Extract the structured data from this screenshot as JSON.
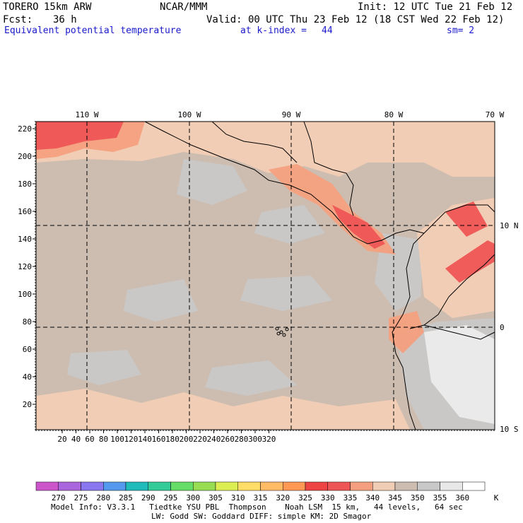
{
  "header": {
    "model_name": "TORERO",
    "resolution": "15km ARW",
    "org": "NCAR/MMM",
    "init_label": "Init: 12 UTC Tue 21 Feb 12",
    "forecast_label": "Fcst:",
    "forecast_hours": "36 h",
    "valid_label": "Valid: 00 UTC Thu 23 Feb 12 (18 CST Wed 22 Feb 12)",
    "field_title": "Equivalent potential temperature",
    "level_label": "at k-index =",
    "level_value": "44",
    "smoothing": "sm= 2"
  },
  "chart_data": {
    "type": "heatmap",
    "title": "Equivalent potential temperature",
    "units": "K",
    "x_grid_ticks": [
      "20",
      "40",
      "60",
      "80",
      "100",
      "120",
      "140",
      "160",
      "180",
      "200",
      "220",
      "240",
      "260",
      "280",
      "300",
      "320"
    ],
    "y_grid_ticks": [
      "20",
      "40",
      "60",
      "80",
      "100",
      "120",
      "140",
      "160",
      "180",
      "200",
      "220"
    ],
    "longitude_labels": [
      "110 W",
      "100 W",
      "90 W",
      "80 W",
      "70 W"
    ],
    "latitude_labels": [
      "10 N",
      "0",
      "10 S"
    ],
    "colorbar": {
      "levels": [
        "270",
        "275",
        "280",
        "285",
        "290",
        "295",
        "300",
        "305",
        "310",
        "315",
        "320",
        "325",
        "330",
        "335",
        "340",
        "345",
        "350",
        "355",
        "360"
      ],
      "unit_label": "K",
      "colors": [
        "#cc55cc",
        "#aa66dd",
        "#8877ee",
        "#5599ee",
        "#22bbbb",
        "#33cc99",
        "#66dd66",
        "#99dd55",
        "#ddee55",
        "#ffdd66",
        "#ffbb66",
        "#ff9955",
        "#ee4444",
        "#ee5555",
        "#f4a080",
        "#f2cdb5",
        "#cdbdb0",
        "#c8c8c8",
        "#e8e8e8",
        "#ffffff"
      ]
    },
    "dominant_field_colors": {
      "background": "#cdbdb0",
      "warm": "#f2cdb5",
      "warmer": "#f4a080",
      "hot": "#ee5555",
      "cool": "#c8c8c8",
      "coolest": "#ececec"
    }
  },
  "footer": {
    "line1": "Model Info: V3.3.1   Tiedtke YSU PBL  Thompson    Noah LSM  15 km,   44 levels,   64 sec",
    "line2": "LW: Godd SW: Goddard DIFF: simple KM: 2D Smagor"
  }
}
